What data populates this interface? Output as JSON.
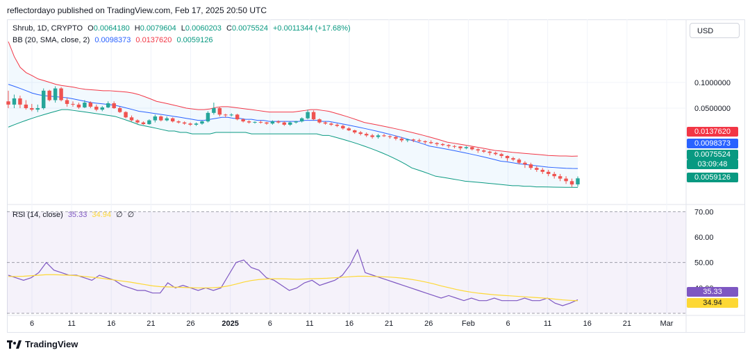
{
  "header": {
    "text": "reflectordayo published on TradingView.com, Feb 17, 2025 20:50 UTC"
  },
  "legend_main": {
    "symbol": "Shrub, 1D, CRYPTO",
    "o_label": "O",
    "o": "0.0064180",
    "h_label": "H",
    "h": "0.0079604",
    "l_label": "L",
    "l": "0.0060203",
    "c_label": "C",
    "c": "0.0075524",
    "change": "+0.0011344 (+17.68%)"
  },
  "legend_bb": {
    "label": "BB (20, SMA, close, 2)",
    "basis": "0.0098373",
    "upper": "0.0137620",
    "lower": "0.0059126"
  },
  "legend_rsi": {
    "label": "RSI (14, close)",
    "rsi": "35.33",
    "ma": "34.94",
    "v1": "∅",
    "v2": "∅"
  },
  "currency_button": "USD",
  "price_axis": {
    "ticks": [
      "0.1000000",
      "0.0500000"
    ],
    "tags": {
      "upper": "0.0137620",
      "basis": "0.0098373",
      "last": "0.0075524",
      "countdown": "03:09:48",
      "lower": "0.0059126"
    }
  },
  "rsi_axis": {
    "ticks": [
      "70.00",
      "60.00",
      "50.00",
      "40.00"
    ],
    "tags": {
      "rsi": "35.33",
      "ma": "34.94"
    }
  },
  "time_axis": {
    "labels": [
      "6",
      "11",
      "16",
      "21",
      "26",
      "2025",
      "6",
      "11",
      "16",
      "21",
      "26",
      "Feb",
      "6",
      "11",
      "16",
      "21",
      "Mar"
    ]
  },
  "footer": {
    "brand": "TradingView"
  },
  "colors": {
    "up": "#26a69a",
    "down": "#ef5350",
    "upper_band": "#f23645",
    "basis": "#2962ff",
    "lower_band": "#089981",
    "band_fill": "#2196f3",
    "rsi_line": "#7e57c2",
    "rsi_ma": "#fdd835",
    "rsi_bg": "#7e57c2"
  },
  "chart_data": [
    {
      "type": "candlestick",
      "title": "Shrub, 1D, CRYPTO",
      "y_scale": "log",
      "x_ticks": [
        "6",
        "11",
        "16",
        "21",
        "26",
        "2025",
        "6",
        "11",
        "16",
        "21",
        "26",
        "Feb",
        "6",
        "11",
        "16",
        "21",
        "Mar"
      ],
      "y_ticks": [
        0.1,
        0.05
      ],
      "candles": [
        [
          0.06,
          0.08,
          0.05,
          0.055
        ],
        [
          0.055,
          0.072,
          0.05,
          0.065
        ],
        [
          0.065,
          0.07,
          0.05,
          0.055
        ],
        [
          0.055,
          0.062,
          0.048,
          0.05
        ],
        [
          0.05,
          0.056,
          0.046,
          0.048
        ],
        [
          0.048,
          0.055,
          0.045,
          0.05
        ],
        [
          0.05,
          0.085,
          0.048,
          0.08
        ],
        [
          0.08,
          0.082,
          0.06,
          0.062
        ],
        [
          0.062,
          0.09,
          0.058,
          0.085
        ],
        [
          0.085,
          0.088,
          0.06,
          0.062
        ],
        [
          0.062,
          0.066,
          0.052,
          0.056
        ],
        [
          0.056,
          0.06,
          0.052,
          0.055
        ],
        [
          0.055,
          0.058,
          0.049,
          0.051
        ],
        [
          0.051,
          0.062,
          0.05,
          0.058
        ],
        [
          0.058,
          0.06,
          0.05,
          0.052
        ],
        [
          0.052,
          0.055,
          0.046,
          0.048
        ],
        [
          0.048,
          0.053,
          0.046,
          0.051
        ],
        [
          0.051,
          0.06,
          0.05,
          0.057
        ],
        [
          0.057,
          0.06,
          0.049,
          0.05
        ],
        [
          0.05,
          0.052,
          0.044,
          0.045
        ],
        [
          0.045,
          0.046,
          0.038,
          0.039
        ],
        [
          0.039,
          0.041,
          0.035,
          0.036
        ],
        [
          0.036,
          0.037,
          0.033,
          0.034
        ],
        [
          0.034,
          0.035,
          0.032,
          0.0325
        ],
        [
          0.0325,
          0.037,
          0.032,
          0.036
        ],
        [
          0.036,
          0.042,
          0.034,
          0.04
        ],
        [
          0.04,
          0.041,
          0.035,
          0.036
        ],
        [
          0.036,
          0.04,
          0.035,
          0.038
        ],
        [
          0.038,
          0.039,
          0.034,
          0.035
        ],
        [
          0.035,
          0.036,
          0.033,
          0.034
        ],
        [
          0.034,
          0.035,
          0.032,
          0.033
        ],
        [
          0.033,
          0.034,
          0.031,
          0.032
        ],
        [
          0.032,
          0.034,
          0.031,
          0.033
        ],
        [
          0.033,
          0.036,
          0.032,
          0.035
        ],
        [
          0.035,
          0.046,
          0.034,
          0.044
        ],
        [
          0.044,
          0.058,
          0.042,
          0.05
        ],
        [
          0.05,
          0.052,
          0.04,
          0.042
        ],
        [
          0.042,
          0.043,
          0.039,
          0.0415
        ],
        [
          0.0415,
          0.0435,
          0.04,
          0.042
        ],
        [
          0.042,
          0.043,
          0.036,
          0.037
        ],
        [
          0.037,
          0.038,
          0.034,
          0.035
        ],
        [
          0.035,
          0.036,
          0.033,
          0.034
        ],
        [
          0.034,
          0.035,
          0.033,
          0.0345
        ],
        [
          0.0345,
          0.0355,
          0.033,
          0.034
        ],
        [
          0.034,
          0.0345,
          0.032,
          0.033
        ],
        [
          0.033,
          0.036,
          0.032,
          0.035
        ],
        [
          0.035,
          0.036,
          0.033,
          0.034
        ],
        [
          0.034,
          0.035,
          0.031,
          0.032
        ],
        [
          0.032,
          0.035,
          0.031,
          0.034
        ],
        [
          0.034,
          0.0355,
          0.033,
          0.035
        ],
        [
          0.035,
          0.039,
          0.034,
          0.038
        ],
        [
          0.038,
          0.048,
          0.037,
          0.045
        ],
        [
          0.045,
          0.047,
          0.036,
          0.037
        ],
        [
          0.037,
          0.038,
          0.033,
          0.034
        ],
        [
          0.034,
          0.035,
          0.032,
          0.033
        ],
        [
          0.033,
          0.034,
          0.031,
          0.032
        ],
        [
          0.032,
          0.033,
          0.03,
          0.031
        ],
        [
          0.031,
          0.032,
          0.028,
          0.029
        ],
        [
          0.029,
          0.03,
          0.027,
          0.0275
        ],
        [
          0.0275,
          0.028,
          0.025,
          0.026
        ],
        [
          0.026,
          0.027,
          0.024,
          0.025
        ],
        [
          0.025,
          0.026,
          0.023,
          0.024
        ],
        [
          0.024,
          0.025,
          0.022,
          0.023
        ],
        [
          0.023,
          0.025,
          0.022,
          0.024
        ],
        [
          0.024,
          0.025,
          0.023,
          0.0235
        ],
        [
          0.0235,
          0.024,
          0.022,
          0.023
        ],
        [
          0.023,
          0.024,
          0.021,
          0.022
        ],
        [
          0.022,
          0.023,
          0.02,
          0.021
        ],
        [
          0.021,
          0.022,
          0.02,
          0.0215
        ],
        [
          0.0215,
          0.022,
          0.02,
          0.021
        ],
        [
          0.021,
          0.022,
          0.02,
          0.0205
        ],
        [
          0.0205,
          0.021,
          0.019,
          0.02
        ],
        [
          0.02,
          0.021,
          0.019,
          0.0195
        ],
        [
          0.0195,
          0.02,
          0.018,
          0.019
        ],
        [
          0.019,
          0.0195,
          0.018,
          0.0185
        ],
        [
          0.0185,
          0.019,
          0.017,
          0.018
        ],
        [
          0.018,
          0.0185,
          0.017,
          0.0178
        ],
        [
          0.0178,
          0.018,
          0.016,
          0.017
        ],
        [
          0.017,
          0.018,
          0.0165,
          0.0175
        ],
        [
          0.0175,
          0.018,
          0.016,
          0.0165
        ],
        [
          0.0165,
          0.017,
          0.015,
          0.016
        ],
        [
          0.016,
          0.0165,
          0.015,
          0.0155
        ],
        [
          0.0155,
          0.016,
          0.014,
          0.015
        ],
        [
          0.015,
          0.0155,
          0.014,
          0.0145
        ],
        [
          0.0145,
          0.015,
          0.013,
          0.0138
        ],
        [
          0.0138,
          0.014,
          0.012,
          0.013
        ],
        [
          0.013,
          0.0135,
          0.012,
          0.0125
        ],
        [
          0.0125,
          0.013,
          0.011,
          0.0115
        ],
        [
          0.0115,
          0.012,
          0.01,
          0.011
        ],
        [
          0.011,
          0.0115,
          0.0095,
          0.01
        ],
        [
          0.01,
          0.0105,
          0.009,
          0.0095
        ],
        [
          0.0095,
          0.01,
          0.0085,
          0.009
        ],
        [
          0.009,
          0.0095,
          0.008,
          0.0085
        ],
        [
          0.0085,
          0.009,
          0.0075,
          0.008
        ],
        [
          0.008,
          0.0085,
          0.007,
          0.0075
        ],
        [
          0.0075,
          0.008,
          0.0065,
          0.007
        ],
        [
          0.007,
          0.0075,
          0.006,
          0.0064
        ],
        [
          0.006418,
          0.0079604,
          0.0060203,
          0.0075524
        ]
      ],
      "series": [
        {
          "name": "BB upper",
          "values": [
            0.3,
            0.2,
            0.15,
            0.13,
            0.12,
            0.11,
            0.105,
            0.1,
            0.095,
            0.092,
            0.09,
            0.088,
            0.085,
            0.083,
            0.082,
            0.081,
            0.08,
            0.08,
            0.079,
            0.078,
            0.077,
            0.075,
            0.072,
            0.068,
            0.064,
            0.06,
            0.058,
            0.056,
            0.054,
            0.052,
            0.05,
            0.049,
            0.048,
            0.048,
            0.049,
            0.051,
            0.052,
            0.052,
            0.051,
            0.05,
            0.049,
            0.048,
            0.047,
            0.046,
            0.045,
            0.045,
            0.045,
            0.045,
            0.045,
            0.046,
            0.047,
            0.048,
            0.048,
            0.047,
            0.046,
            0.044,
            0.042,
            0.04,
            0.038,
            0.036,
            0.034,
            0.033,
            0.032,
            0.031,
            0.03,
            0.029,
            0.028,
            0.027,
            0.026,
            0.025,
            0.024,
            0.023,
            0.022,
            0.021,
            0.02,
            0.0195,
            0.019,
            0.0185,
            0.018,
            0.0175,
            0.017,
            0.0165,
            0.016,
            0.0158,
            0.0155,
            0.0152,
            0.015,
            0.0148,
            0.0146,
            0.0144,
            0.0142,
            0.014,
            0.0139,
            0.0138,
            0.0138,
            0.0137,
            0.013762
          ]
        },
        {
          "name": "BB basis",
          "values": [
            0.095,
            0.09,
            0.085,
            0.08,
            0.075,
            0.072,
            0.07,
            0.069,
            0.068,
            0.067,
            0.066,
            0.064,
            0.062,
            0.06,
            0.058,
            0.057,
            0.056,
            0.055,
            0.054,
            0.052,
            0.05,
            0.048,
            0.046,
            0.045,
            0.044,
            0.043,
            0.042,
            0.041,
            0.04,
            0.039,
            0.038,
            0.037,
            0.036,
            0.036,
            0.037,
            0.038,
            0.039,
            0.039,
            0.038,
            0.038,
            0.037,
            0.037,
            0.036,
            0.036,
            0.035,
            0.035,
            0.035,
            0.035,
            0.035,
            0.035,
            0.036,
            0.036,
            0.036,
            0.035,
            0.035,
            0.034,
            0.033,
            0.032,
            0.031,
            0.03,
            0.029,
            0.028,
            0.027,
            0.026,
            0.025,
            0.024,
            0.023,
            0.022,
            0.021,
            0.02,
            0.019,
            0.018,
            0.0175,
            0.017,
            0.0165,
            0.016,
            0.0155,
            0.015,
            0.0145,
            0.014,
            0.0135,
            0.013,
            0.0125,
            0.012,
            0.0118,
            0.0115,
            0.0112,
            0.011,
            0.0108,
            0.0106,
            0.0104,
            0.0102,
            0.0101,
            0.01,
            0.0099,
            0.00985,
            0.0098373
          ]
        },
        {
          "name": "BB lower",
          "values": [
            0.03,
            0.032,
            0.034,
            0.036,
            0.038,
            0.04,
            0.042,
            0.044,
            0.046,
            0.048,
            0.048,
            0.047,
            0.046,
            0.045,
            0.044,
            0.043,
            0.042,
            0.041,
            0.04,
            0.038,
            0.036,
            0.034,
            0.032,
            0.031,
            0.03,
            0.029,
            0.028,
            0.027,
            0.027,
            0.026,
            0.026,
            0.025,
            0.025,
            0.025,
            0.025,
            0.026,
            0.026,
            0.026,
            0.026,
            0.026,
            0.026,
            0.025,
            0.025,
            0.025,
            0.025,
            0.025,
            0.025,
            0.025,
            0.025,
            0.025,
            0.025,
            0.025,
            0.025,
            0.024,
            0.024,
            0.023,
            0.022,
            0.021,
            0.02,
            0.019,
            0.018,
            0.017,
            0.016,
            0.015,
            0.014,
            0.013,
            0.012,
            0.011,
            0.01,
            0.0095,
            0.009,
            0.0085,
            0.008,
            0.0078,
            0.0076,
            0.0074,
            0.0072,
            0.007,
            0.0069,
            0.0068,
            0.0067,
            0.0066,
            0.0065,
            0.0064,
            0.0063,
            0.0062,
            0.0062,
            0.0061,
            0.0061,
            0.006,
            0.006,
            0.00598,
            0.00596,
            0.00594,
            0.00593,
            0.00592,
            0.0059126
          ]
        }
      ]
    },
    {
      "type": "line",
      "title": "RSI (14, close)",
      "y_ticks": [
        70,
        60,
        50,
        40
      ],
      "ylim": [
        30,
        72
      ],
      "bands": [
        70,
        50,
        30
      ],
      "series": [
        {
          "name": "RSI",
          "values": [
            45,
            44,
            43,
            44,
            46,
            50,
            47,
            46,
            45,
            45,
            44,
            43,
            45,
            44,
            43,
            41,
            40,
            39,
            39,
            38,
            38,
            42,
            40,
            41,
            40,
            39,
            40,
            39,
            40,
            45,
            50,
            51,
            48,
            47,
            44,
            43,
            41,
            39,
            40,
            42,
            43,
            41,
            42,
            43,
            45,
            49,
            55,
            46,
            45,
            44,
            43,
            42,
            41,
            40,
            39,
            38,
            37,
            36,
            37,
            36,
            35,
            36,
            35,
            35,
            36,
            35,
            35,
            35,
            36,
            35,
            35,
            36,
            34,
            33,
            34,
            35.33
          ]
        },
        {
          "name": "RSI-based MA",
          "values": [
            44.5,
            44.5,
            44.6,
            44.8,
            45,
            45.2,
            45.2,
            45.1,
            45,
            44.8,
            44.5,
            44.2,
            43.9,
            43.5,
            43.1,
            42.7,
            42.3,
            41.8,
            41.3,
            40.8,
            40.5,
            40.4,
            40.3,
            40.2,
            40.1,
            40,
            40,
            40.1,
            40.3,
            40.8,
            41.5,
            42.3,
            42.9,
            43.3,
            43.5,
            43.6,
            43.6,
            43.5,
            43.4,
            43.5,
            43.6,
            43.7,
            43.8,
            44,
            44.2,
            44.4,
            44.6,
            44.6,
            44.5,
            44.4,
            44.3,
            44.1,
            43.8,
            43.4,
            42.9,
            42.3,
            41.6,
            40.8,
            40.1,
            39.4,
            38.8,
            38.3,
            37.9,
            37.6,
            37.3,
            37.1,
            36.9,
            36.7,
            36.5,
            36.3,
            36.1,
            35.9,
            35.6,
            35.3,
            35.1,
            34.94
          ]
        }
      ]
    }
  ]
}
